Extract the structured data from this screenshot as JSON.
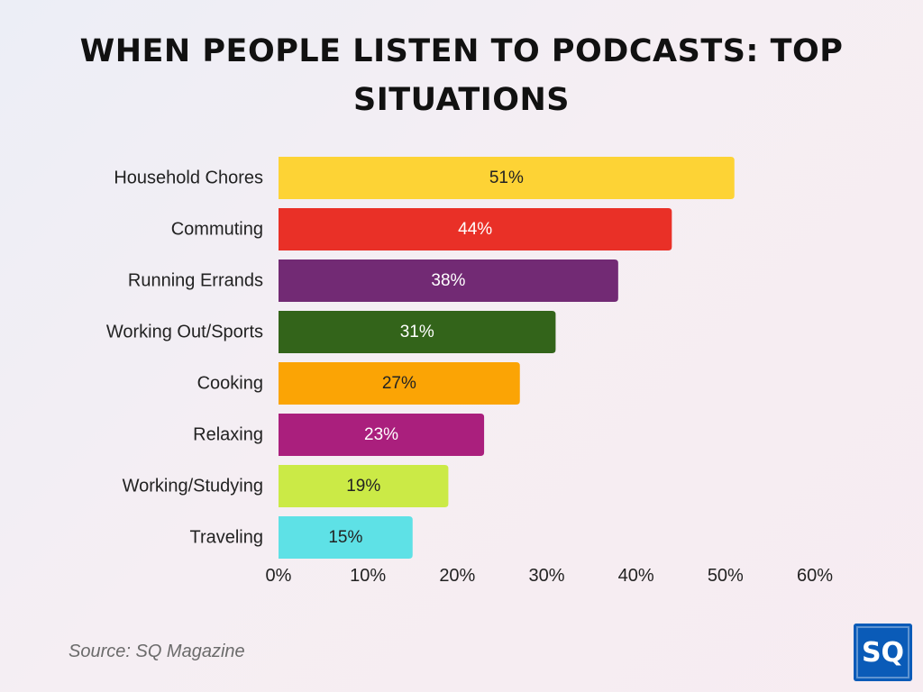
{
  "title": "WHEN PEOPLE LISTEN TO PODCASTS: TOP SITUATIONS",
  "source": "Source: SQ Magazine",
  "logo_text": "SQ",
  "chart_data": {
    "type": "bar",
    "orientation": "horizontal",
    "categories": [
      "Household Chores",
      "Commuting",
      "Running Errands",
      "Working Out/Sports",
      "Cooking",
      "Relaxing",
      "Working/Studying",
      "Traveling"
    ],
    "values": [
      51,
      44,
      38,
      31,
      27,
      23,
      19,
      15
    ],
    "data_labels": [
      "51%",
      "44%",
      "38%",
      "31%",
      "27%",
      "23%",
      "19%",
      "15%"
    ],
    "colors": [
      "#fdd335",
      "#e93027",
      "#722a74",
      "#33641a",
      "#fba405",
      "#aa1f7d",
      "#cbea46",
      "#5ee1e6"
    ],
    "label_colors": [
      "#222222",
      "#ffffff",
      "#ffffff",
      "#ffffff",
      "#222222",
      "#ffffff",
      "#222222",
      "#222222"
    ],
    "x_ticks": [
      "0%",
      "10%",
      "20%",
      "30%",
      "40%",
      "50%",
      "60%"
    ],
    "xlim": [
      0,
      60
    ],
    "grid": false,
    "legend": "none"
  }
}
